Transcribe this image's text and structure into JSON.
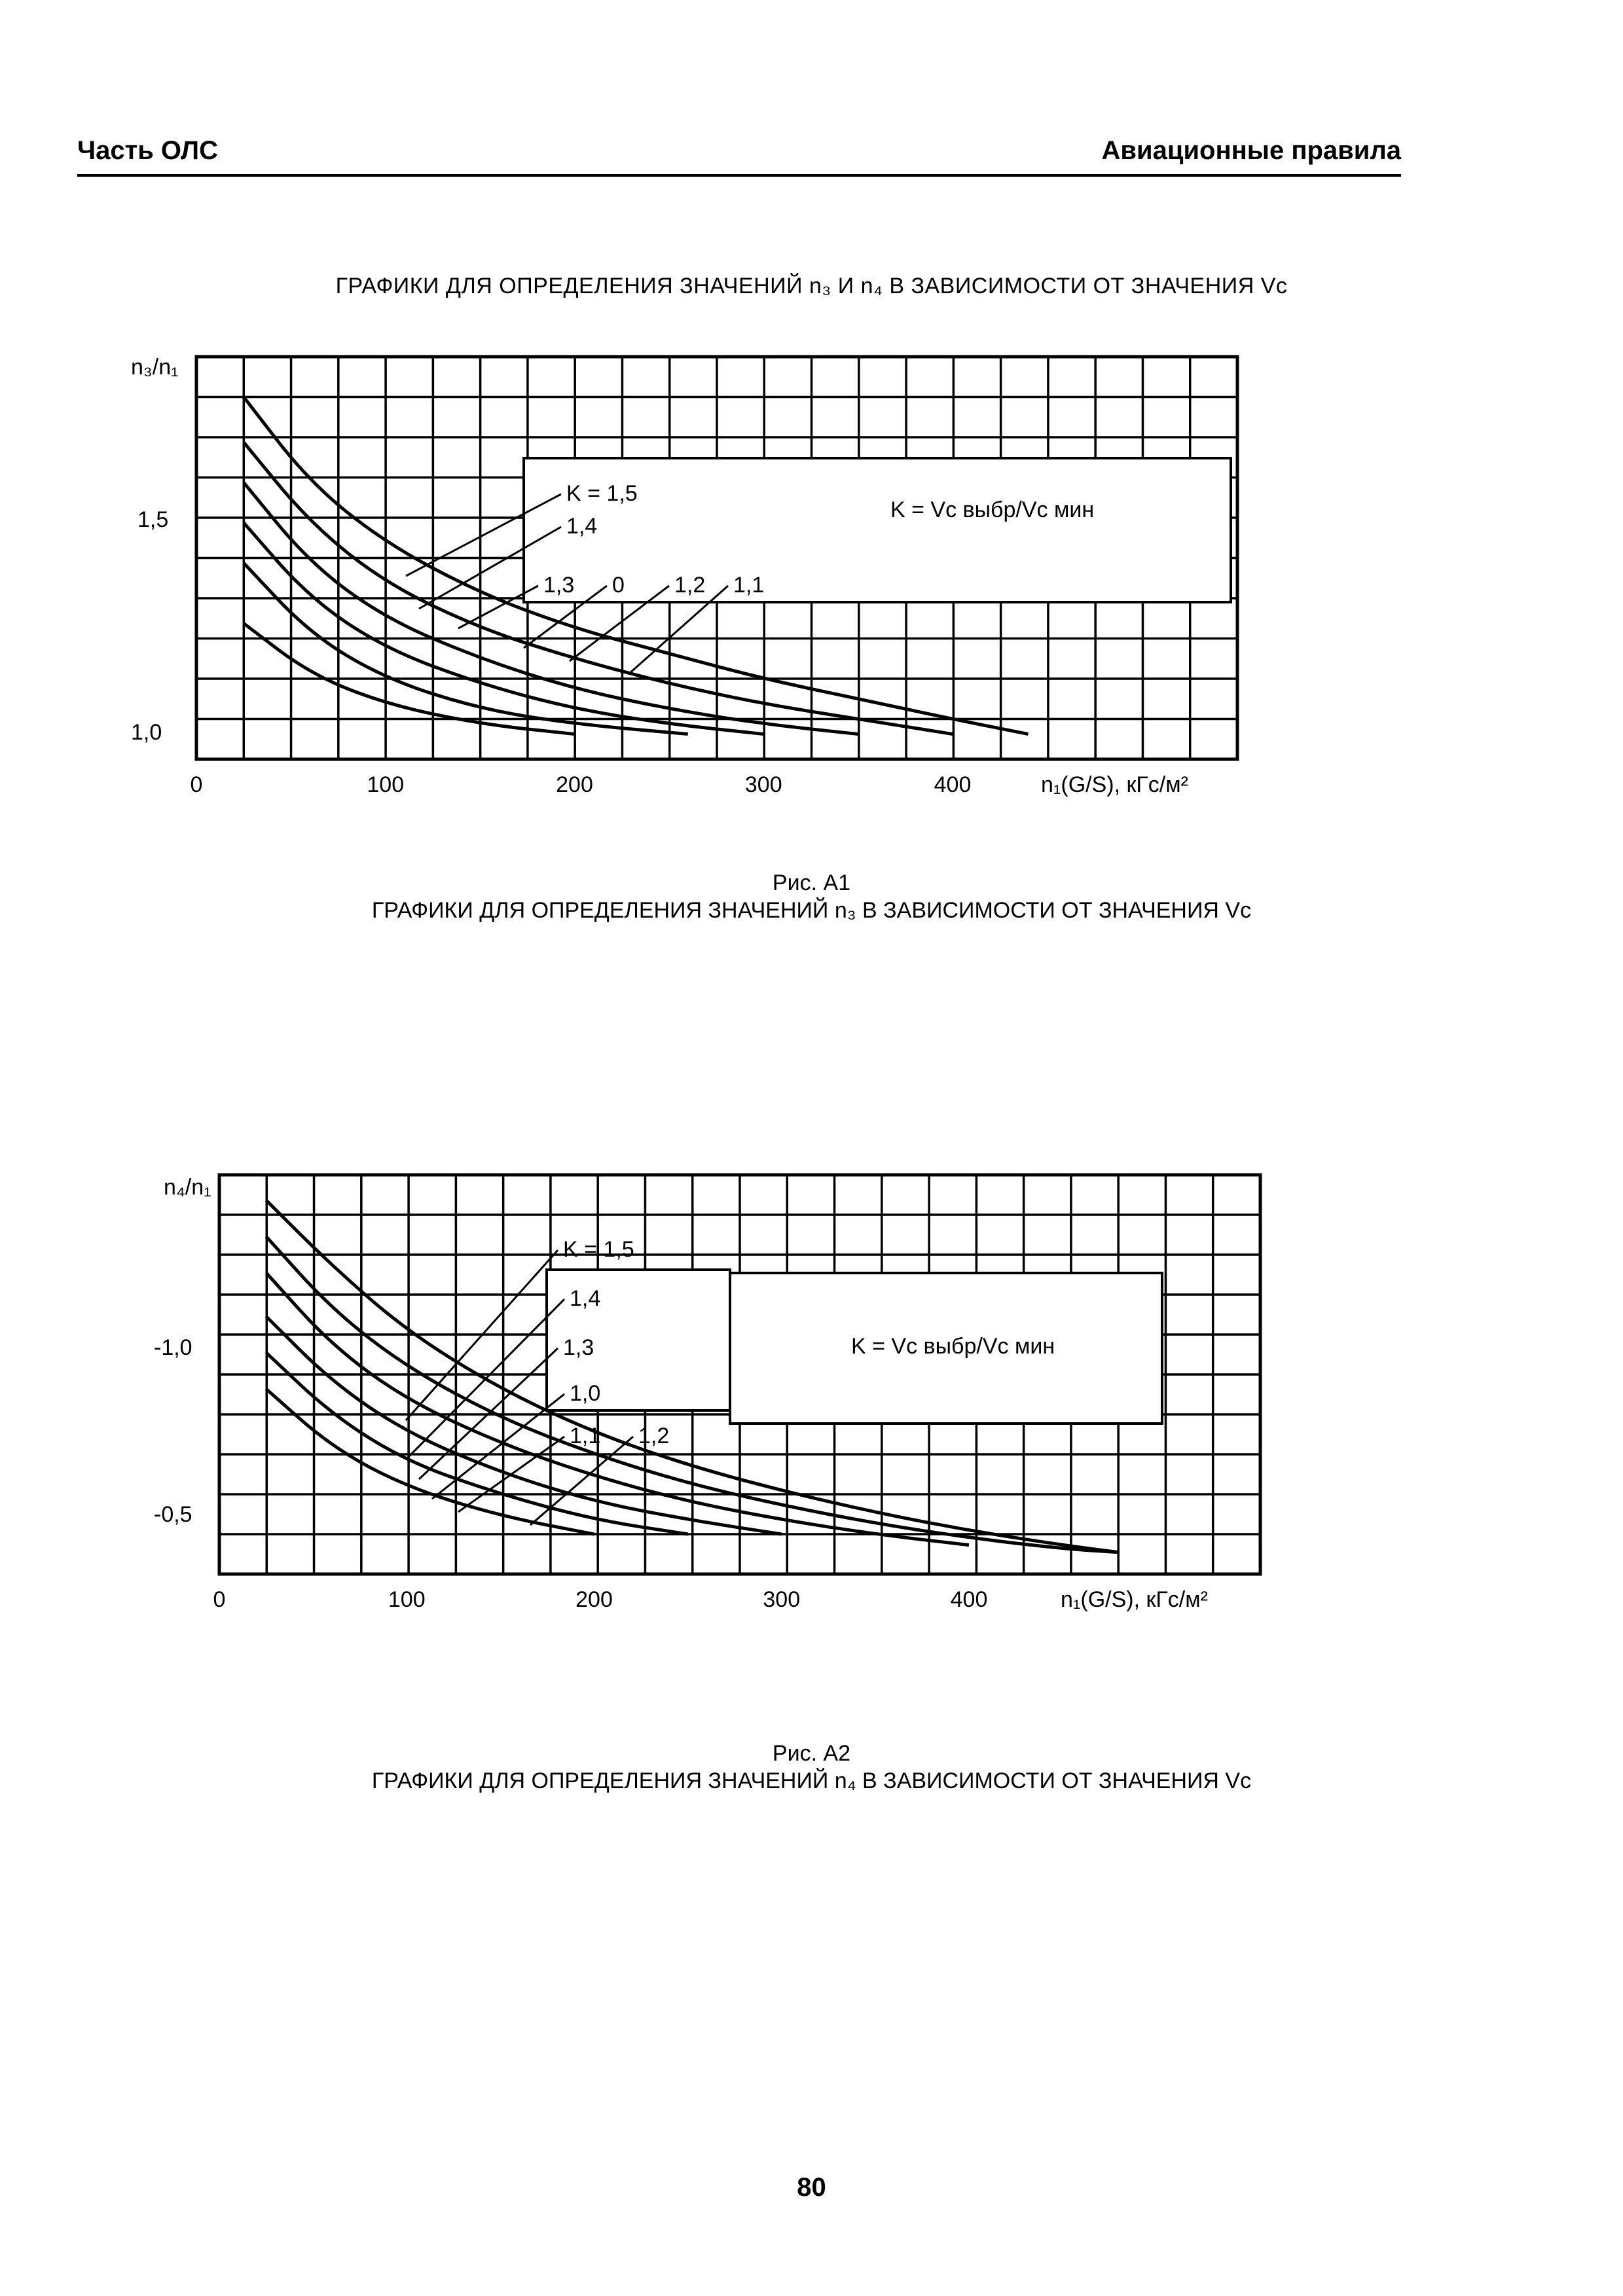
{
  "header": {
    "left": "Часть ОЛС",
    "right": "Авиационные правила"
  },
  "figure1": {
    "heading": "ГРАФИКИ ДЛЯ ОПРЕДЕЛЕНИЯ ЗНАЧЕНИЙ n₃ И n₄ В ЗАВИСИМОСТИ ОТ ЗНАЧЕНИЯ Vс",
    "caption_number": "Рис. А1",
    "caption_text": "ГРАФИКИ ДЛЯ ОПРЕДЕЛЕНИЯ ЗНАЧЕНИЙ n₃ В ЗАВИСИМОСТИ ОТ ЗНАЧЕНИЯ Vс"
  },
  "figure2": {
    "caption_number": "Рис. А2",
    "caption_text": "ГРАФИКИ ДЛЯ ОПРЕДЕЛЕНИЯ ЗНАЧЕНИЙ n₄ В ЗАВИСИМОСТИ ОТ ЗНАЧЕНИЯ Vс"
  },
  "page_number": "80",
  "chart_data": [
    {
      "type": "line",
      "ylabel": "n₃/n₁",
      "xlabel": "n₁(G/S), кГс/м²",
      "xticks": [
        "0",
        "100",
        "200",
        "300",
        "400"
      ],
      "yticks": [
        "1,5",
        "1,0"
      ],
      "xlim": [
        0,
        500
      ],
      "ylim": [
        0.95,
        1.75
      ],
      "grid": true,
      "legend_text": "K = Vс выбр/Vс мин",
      "curve_labels": [
        "K = 1,5",
        "1,4",
        "1,3",
        "0",
        "1,2",
        "1,1"
      ],
      "series": [
        {
          "name": "K = 1,5",
          "x": [
            25,
            60,
            100,
            150,
            200,
            250,
            300,
            350,
            400,
            440
          ],
          "y": [
            1.67,
            1.5,
            1.38,
            1.28,
            1.21,
            1.16,
            1.11,
            1.07,
            1.03,
            1.0
          ]
        },
        {
          "name": "1,4",
          "x": [
            25,
            60,
            100,
            150,
            200,
            250,
            300,
            350,
            400
          ],
          "y": [
            1.58,
            1.42,
            1.3,
            1.21,
            1.15,
            1.1,
            1.06,
            1.03,
            1.0
          ]
        },
        {
          "name": "1,3",
          "x": [
            25,
            60,
            100,
            150,
            200,
            250,
            300,
            350
          ],
          "y": [
            1.5,
            1.34,
            1.23,
            1.15,
            1.09,
            1.05,
            1.02,
            1.0
          ]
        },
        {
          "name": "0",
          "x": [
            25,
            60,
            100,
            150,
            200,
            250,
            300
          ],
          "y": [
            1.42,
            1.27,
            1.17,
            1.1,
            1.05,
            1.02,
            1.0
          ]
        },
        {
          "name": "1,2",
          "x": [
            25,
            60,
            100,
            150,
            200,
            260
          ],
          "y": [
            1.34,
            1.2,
            1.11,
            1.05,
            1.02,
            1.0
          ]
        },
        {
          "name": "1,1",
          "x": [
            25,
            60,
            100,
            150,
            200
          ],
          "y": [
            1.22,
            1.12,
            1.06,
            1.02,
            1.0
          ]
        }
      ]
    },
    {
      "type": "line",
      "ylabel": "n₄/n₁",
      "xlabel": "n₁(G/S), кГс/м²",
      "xticks": [
        "0",
        "100",
        "200",
        "300",
        "400"
      ],
      "yticks": [
        "-1,0",
        "-0,5"
      ],
      "xlim": [
        0,
        500
      ],
      "ylim": [
        -0.35,
        -1.45
      ],
      "grid": true,
      "legend_text": "K = Vс выбр/Vс мин",
      "curve_labels": [
        "K = 1,5",
        "1,4",
        "1,3",
        "1,0",
        "1,1",
        "1,2"
      ],
      "series": [
        {
          "name": "K = 1,5",
          "x": [
            25,
            60,
            100,
            150,
            200,
            250,
            300,
            350,
            400,
            450,
            480
          ],
          "y": [
            -1.38,
            -1.2,
            -1.02,
            -0.86,
            -0.74,
            -0.65,
            -0.58,
            -0.52,
            -0.47,
            -0.43,
            -0.41
          ]
        },
        {
          "name": "1,4",
          "x": [
            25,
            60,
            100,
            150,
            200,
            250,
            300,
            350,
            400,
            450,
            480
          ],
          "y": [
            -1.28,
            -1.08,
            -0.92,
            -0.78,
            -0.68,
            -0.6,
            -0.54,
            -0.49,
            -0.45,
            -0.42,
            -0.41
          ]
        },
        {
          "name": "1,3",
          "x": [
            25,
            60,
            100,
            150,
            200,
            250,
            300,
            350,
            400
          ],
          "y": [
            -1.18,
            -0.98,
            -0.83,
            -0.71,
            -0.62,
            -0.55,
            -0.5,
            -0.46,
            -0.43
          ]
        },
        {
          "name": "1,0",
          "x": [
            25,
            60,
            100,
            150,
            200,
            250,
            300
          ],
          "y": [
            -1.06,
            -0.88,
            -0.74,
            -0.63,
            -0.55,
            -0.5,
            -0.46
          ]
        },
        {
          "name": "1,1",
          "x": [
            25,
            60,
            100,
            150,
            200,
            250
          ],
          "y": [
            -0.96,
            -0.79,
            -0.66,
            -0.57,
            -0.5,
            -0.46
          ]
        },
        {
          "name": "1,2",
          "x": [
            25,
            60,
            100,
            150,
            200
          ],
          "y": [
            -0.86,
            -0.7,
            -0.59,
            -0.51,
            -0.46
          ]
        }
      ]
    }
  ]
}
